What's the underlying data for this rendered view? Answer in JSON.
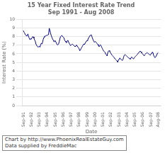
{
  "chart_data": {
    "type": "line",
    "title": "15 Year Fixed Interest Rate Trend",
    "subtitle": "Sep 1991 - Aug 2008",
    "xlabel": "Date",
    "ylabel": "Interest Rate (%)",
    "annotations": [
      "Chart by http://www.PhoenixRealEstateGuy.com",
      "Data supplied by FreddieMac"
    ],
    "color": "#00008B",
    "grid": "y",
    "xlim": [
      1991.5,
      2008.9
    ],
    "xticks": [
      {
        "value": 1991.67,
        "label": "Sep-91"
      },
      {
        "value": 1992.67,
        "label": "Sep-92"
      },
      {
        "value": 1993.67,
        "label": "Sep-93"
      },
      {
        "value": 1994.67,
        "label": "Sep-94"
      },
      {
        "value": 1995.67,
        "label": "Sep-95"
      },
      {
        "value": 1996.67,
        "label": "Sep-96"
      },
      {
        "value": 1997.67,
        "label": "Sep-97"
      },
      {
        "value": 1998.67,
        "label": "Sep-98"
      },
      {
        "value": 1999.67,
        "label": "Sep-99"
      },
      {
        "value": 2000.67,
        "label": "Sep-00"
      },
      {
        "value": 2001.67,
        "label": "Sep-01"
      },
      {
        "value": 2002.67,
        "label": "Sep-02"
      },
      {
        "value": 2003.67,
        "label": "Sep-03"
      },
      {
        "value": 2004.67,
        "label": "Sep-04"
      },
      {
        "value": 2005.67,
        "label": "Sep-05"
      },
      {
        "value": 2006.67,
        "label": "Sep-06"
      },
      {
        "value": 2007.67,
        "label": "Sep-07"
      },
      {
        "value": 2008.58,
        "label": "Aug-08"
      }
    ],
    "ylim": [
      0,
      10
    ],
    "yticks": [
      0,
      1,
      2,
      3,
      4,
      5,
      6,
      7,
      8,
      9,
      10
    ],
    "x": [
      1991.67,
      1991.75,
      1991.83,
      1991.92,
      1992.0,
      1992.08,
      1992.17,
      1992.25,
      1992.33,
      1992.42,
      1992.5,
      1992.58,
      1992.67,
      1992.75,
      1992.83,
      1992.92,
      1993.0,
      1993.08,
      1993.17,
      1993.25,
      1993.33,
      1993.42,
      1993.5,
      1993.58,
      1993.67,
      1993.75,
      1993.83,
      1993.92,
      1994.0,
      1994.08,
      1994.17,
      1994.25,
      1994.33,
      1994.42,
      1994.5,
      1994.58,
      1994.67,
      1994.75,
      1994.83,
      1994.92,
      1995.0,
      1995.08,
      1995.17,
      1995.25,
      1995.33,
      1995.42,
      1995.5,
      1995.58,
      1995.67,
      1995.75,
      1995.83,
      1995.92,
      1996.0,
      1996.08,
      1996.17,
      1996.25,
      1996.33,
      1996.42,
      1996.5,
      1996.58,
      1996.67,
      1996.75,
      1996.83,
      1996.92,
      1997.0,
      1997.08,
      1997.17,
      1997.25,
      1997.33,
      1997.42,
      1997.5,
      1997.58,
      1997.67,
      1997.75,
      1997.83,
      1997.92,
      1998.0,
      1998.08,
      1998.17,
      1998.25,
      1998.33,
      1998.42,
      1998.5,
      1998.58,
      1998.67,
      1998.75,
      1998.83,
      1998.92,
      1999.0,
      1999.08,
      1999.17,
      1999.25,
      1999.33,
      1999.42,
      1999.5,
      1999.58,
      1999.67,
      1999.75,
      1999.83,
      1999.92,
      2000.0,
      2000.08,
      2000.17,
      2000.25,
      2000.33,
      2000.42,
      2000.5,
      2000.58,
      2000.67,
      2000.75,
      2000.83,
      2000.92,
      2001.0,
      2001.08,
      2001.17,
      2001.25,
      2001.33,
      2001.42,
      2001.5,
      2001.58,
      2001.67,
      2001.75,
      2001.83,
      2001.92,
      2002.0,
      2002.08,
      2002.17,
      2002.25,
      2002.33,
      2002.42,
      2002.5,
      2002.58,
      2002.67,
      2002.75,
      2002.83,
      2002.92,
      2003.0,
      2003.08,
      2003.17,
      2003.25,
      2003.33,
      2003.42,
      2003.5,
      2003.58,
      2003.67,
      2003.75,
      2003.83,
      2003.92,
      2004.0,
      2004.08,
      2004.17,
      2004.25,
      2004.33,
      2004.42,
      2004.5,
      2004.58,
      2004.67,
      2004.75,
      2004.83,
      2004.92,
      2005.0,
      2005.08,
      2005.17,
      2005.25,
      2005.33,
      2005.42,
      2005.5,
      2005.58,
      2005.67,
      2005.75,
      2005.83,
      2005.92,
      2006.0,
      2006.08,
      2006.17,
      2006.25,
      2006.33,
      2006.42,
      2006.5,
      2006.58,
      2006.67,
      2006.75,
      2006.83,
      2006.92,
      2007.0,
      2007.08,
      2007.17,
      2007.25,
      2007.33,
      2007.42,
      2007.5,
      2007.58,
      2007.67,
      2007.75,
      2007.83,
      2007.92,
      2008.0,
      2008.08,
      2008.17,
      2008.25,
      2008.33,
      2008.5,
      2008.58
    ],
    "values": [
      8.69,
      8.52,
      8.4,
      8.21,
      8.14,
      8.04,
      8.22,
      8.29,
      7.95,
      7.82,
      7.63,
      7.75,
      7.69,
      7.84,
      7.98,
      7.96,
      7.8,
      7.61,
      7.45,
      7.14,
      6.99,
      6.88,
      6.78,
      6.82,
      6.85,
      6.77,
      7.01,
      7.21,
      7.14,
      7.33,
      7.68,
      7.9,
      8.05,
      8.02,
      8.09,
      8.13,
      8.16,
      8.18,
      8.21,
      8.96,
      8.73,
      8.4,
      8.11,
      7.91,
      7.74,
      7.59,
      7.41,
      7.49,
      7.52,
      7.37,
      7.19,
      7.05,
      7.03,
      7.11,
      7.41,
      7.72,
      7.98,
      8.06,
      8.13,
      8.01,
      7.95,
      7.87,
      7.62,
      7.47,
      7.38,
      7.27,
      7.46,
      7.57,
      7.38,
      7.21,
      7.09,
      6.95,
      7.02,
      7.08,
      7.12,
      7.05,
      6.97,
      6.88,
      6.82,
      6.92,
      7.02,
      6.91,
      6.8,
      6.7,
      6.58,
      6.35,
      6.44,
      6.63,
      6.75,
      6.88,
      7.02,
      7.15,
      7.06,
      7.22,
      7.35,
      7.48,
      7.52,
      7.62,
      7.8,
      7.94,
      8.09,
      8.11,
      8.22,
      8.04,
      7.82,
      7.62,
      7.45,
      7.33,
      7.44,
      7.38,
      7.29,
      7.18,
      7.08,
      6.97,
      6.82,
      6.95,
      7.05,
      6.93,
      6.76,
      6.6,
      6.44,
      6.31,
      6.25,
      6.18,
      5.96,
      5.88,
      5.75,
      6.1,
      6.28,
      6.37,
      6.29,
      6.15,
      6.02,
      5.9,
      5.8,
      5.72,
      5.64,
      5.52,
      5.41,
      5.34,
      5.27,
      5.18,
      5.02,
      5.24,
      5.38,
      5.52,
      5.45,
      5.37,
      5.3,
      5.22,
      5.37,
      5.64,
      5.82,
      5.91,
      5.86,
      5.78,
      5.69,
      5.62,
      5.55,
      5.5,
      5.45,
      5.38,
      5.51,
      5.64,
      5.54,
      5.47,
      5.41,
      5.54,
      5.63,
      5.72,
      5.8,
      5.87,
      5.97,
      6.07,
      6.16,
      6.26,
      6.32,
      6.22,
      6.12,
      6.02,
      5.93,
      5.84,
      5.76,
      5.92,
      5.99,
      6.07,
      6.14,
      6.1,
      6.02,
      5.95,
      5.89,
      5.84,
      5.96,
      6.09,
      6.19,
      6.14,
      5.84,
      5.69,
      5.55,
      5.62,
      5.75,
      6.08,
      6.15
    ]
  }
}
